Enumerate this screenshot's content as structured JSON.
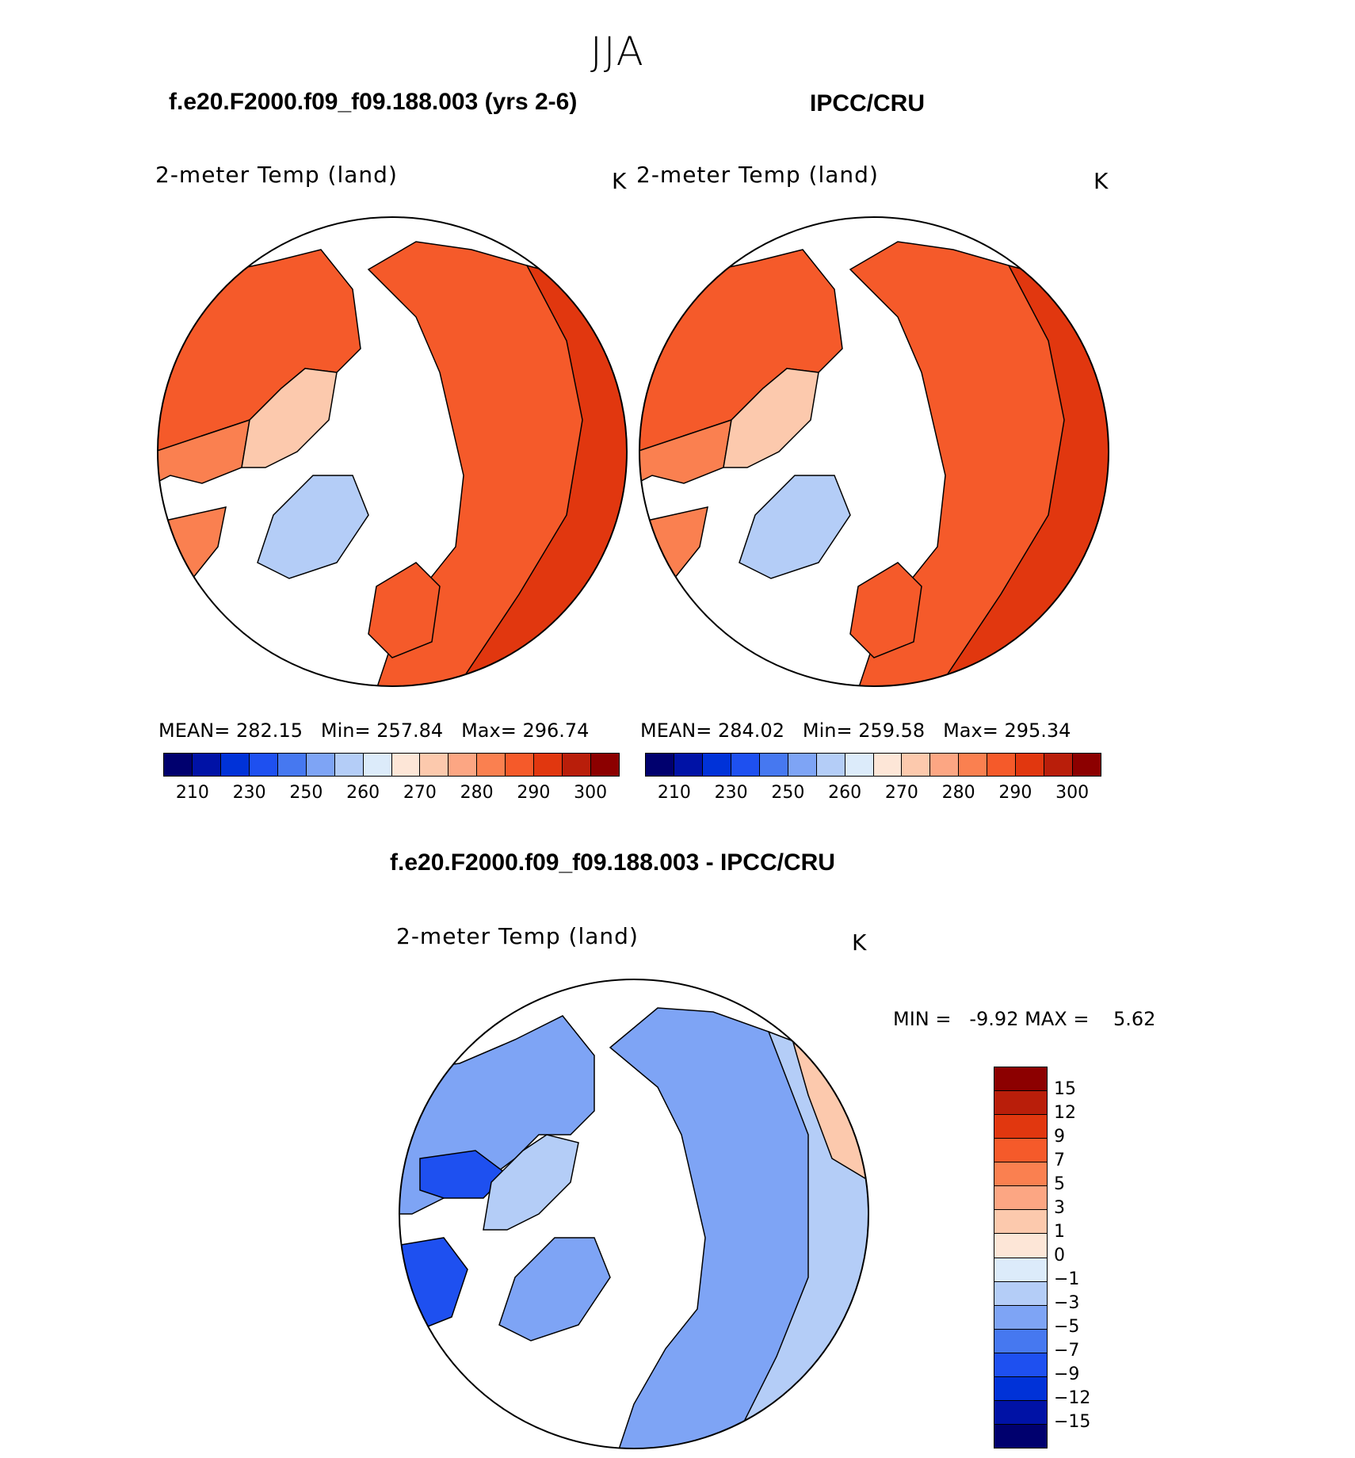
{
  "season": "JJA",
  "panels": [
    {
      "id": "model",
      "title": "f.e20.F2000.f09_f09.188.003 (yrs 2-6)",
      "variable": "2-meter Temp (land)",
      "units": "K",
      "stats": {
        "mean_label": "MEAN=",
        "mean": "282.15",
        "min_label": "Min=",
        "min": "257.84",
        "max_label": "Max=",
        "max": "296.74"
      }
    },
    {
      "id": "obs",
      "title": "IPCC/CRU",
      "variable": "2-meter Temp (land)",
      "units": "K",
      "stats": {
        "mean_label": "MEAN=",
        "mean": "284.02",
        "min_label": "Min=",
        "min": "259.58",
        "max_label": "Max=",
        "max": "295.34"
      }
    },
    {
      "id": "diff",
      "title": "f.e20.F2000.f09_f09.188.003 - IPCC/CRU",
      "variable": "2-meter Temp (land)",
      "units": "K",
      "stats": {
        "min_label": "MIN =",
        "min": "-9.92",
        "max_label": "MAX =",
        "max": "5.62"
      }
    }
  ],
  "colorbar_abs": {
    "colors": [
      "#00006e",
      "#0012a6",
      "#0032d8",
      "#1e50f0",
      "#4678f0",
      "#7ea4f5",
      "#b4cdf7",
      "#dcebfa",
      "#fde6d7",
      "#fcc9ad",
      "#fca683",
      "#fa8050",
      "#f55a2a",
      "#e1370f",
      "#b91e0a",
      "#8c0000"
    ],
    "labels": [
      "210",
      "230",
      "250",
      "260",
      "270",
      "280",
      "290",
      "300"
    ]
  },
  "colorbar_diff": {
    "colors": [
      "#8c0000",
      "#b91e0a",
      "#e1370f",
      "#f55a2a",
      "#fa8050",
      "#fca683",
      "#fcc9ad",
      "#fde6d7",
      "#dcebfa",
      "#b4cdf7",
      "#7ea4f5",
      "#4678f0",
      "#1e50f0",
      "#0032d8",
      "#0012a6",
      "#00006e"
    ],
    "labels": [
      "15",
      "12",
      "9",
      "7",
      "5",
      "3",
      "1",
      "0",
      "−1",
      "−3",
      "−5",
      "−7",
      "−9",
      "−12",
      "−15"
    ]
  },
  "colors": {
    "land_warm": "#f55a2a",
    "land_hot": "#e1370f",
    "land_mid": "#fa8050",
    "land_cool": "#fcc9ad",
    "ice_cold": "#b4cdf7",
    "diff_blue": "#7ea4f5",
    "diff_light": "#b4cdf7",
    "diff_deep": "#1e50f0",
    "diff_pink": "#fcc9ad"
  }
}
